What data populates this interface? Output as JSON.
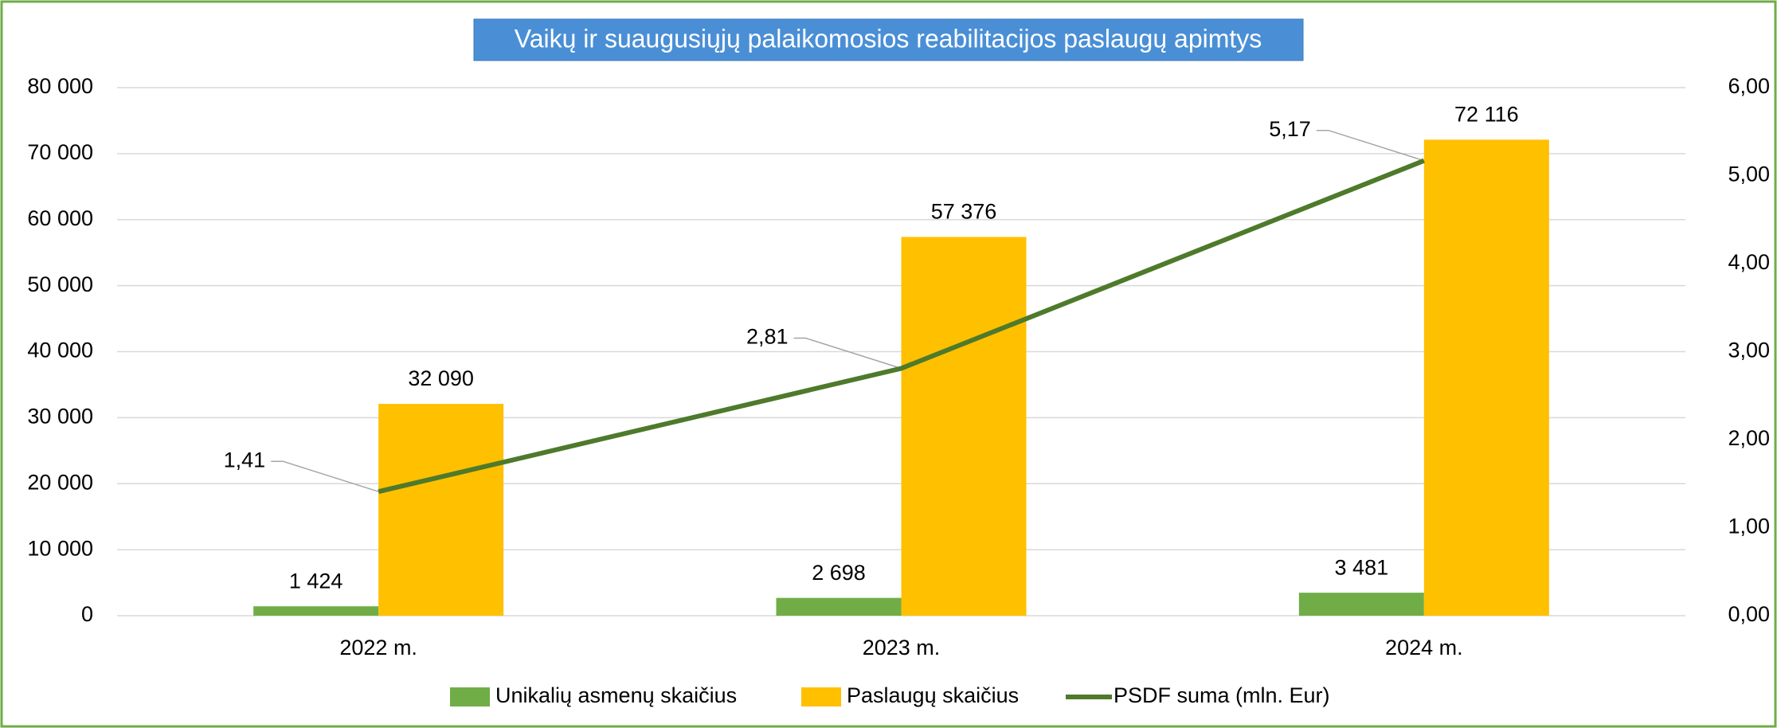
{
  "chart_data": {
    "type": "bar",
    "title": "Vaikų ir suaugusiųjų palaikomosios reabilitacijos paslaugų apimtys",
    "categories": [
      "2022 m.",
      "2023 m.",
      "2024 m."
    ],
    "series": [
      {
        "name": "Unikalių asmenų skaičius",
        "color": "#70ad47",
        "values": [
          1424,
          2698,
          3481
        ],
        "value_labels": [
          "1 424",
          "2 698",
          "3 481"
        ]
      },
      {
        "name": "Paslaugų skaičius",
        "color": "#ffc000",
        "values": [
          32090,
          57376,
          72116
        ],
        "value_labels": [
          "32 090",
          "57 376",
          "72 116"
        ]
      },
      {
        "name": "PSDF suma (mln. Eur)",
        "color": "#4e7a2b",
        "type": "line",
        "axis": "y2",
        "values": [
          1.41,
          2.81,
          5.17
        ],
        "value_labels": [
          "1,41",
          "2,81",
          "5,17"
        ]
      }
    ],
    "ylim": [
      0,
      80000
    ],
    "yticks": [
      0,
      {
        "value": 10000,
        "label": "10 000"
      },
      {
        "value": 20000,
        "label": "20 000"
      },
      {
        "value": 30000,
        "label": "30 000"
      },
      {
        "value": 40000,
        "label": "40 000"
      },
      {
        "value": 50000,
        "label": "50 000"
      },
      {
        "value": 60000,
        "label": "60 000"
      },
      {
        "value": 70000,
        "label": "70 000"
      },
      {
        "value": 80000,
        "label": "80 000"
      }
    ],
    "y2lim": [
      0,
      6
    ],
    "y2ticks": [
      {
        "value": 0,
        "label": "0,00"
      },
      {
        "value": 1,
        "label": "1,00"
      },
      {
        "value": 2,
        "label": "2,00"
      },
      {
        "value": 3,
        "label": "3,00"
      },
      {
        "value": 4,
        "label": "4,00"
      },
      {
        "value": 5,
        "label": "5,00"
      },
      {
        "value": 6,
        "label": "6,00"
      }
    ],
    "grid": true,
    "legend": "bottom"
  }
}
